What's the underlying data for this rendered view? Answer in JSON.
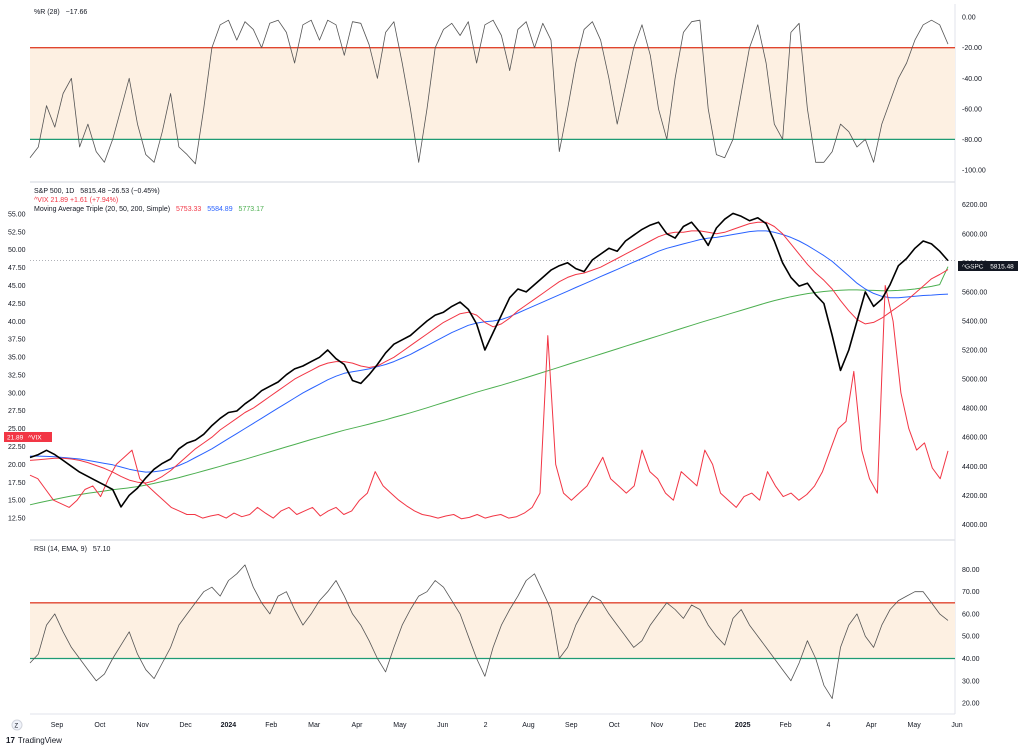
{
  "colors": {
    "price": "#000000",
    "vix": "#f23645",
    "ma20": "#f23645",
    "ma50": "#2962ff",
    "ma200": "#4caf50",
    "upper_band": "#e0452f",
    "lower_band": "#1e9b74",
    "band_fill": "#fdf0e2",
    "grid": "#f0f3fa"
  },
  "footer": {
    "brand_icon": "tradingview-logo-icon",
    "brand": "TradingView"
  },
  "chart_data": [
    {
      "id": "wr",
      "type": "line",
      "legend": {
        "name": "%R (28)",
        "value": "−17.66"
      },
      "y_ticks": [
        "0.00",
        "-20.00",
        "-40.00",
        "-60.00",
        "-80.00",
        "-100.00"
      ],
      "ylim": [
        -104,
        6
      ],
      "levels": [
        {
          "value": -20,
          "color": "#e0452f"
        },
        {
          "value": -80,
          "color": "#1e9b74"
        }
      ],
      "band": [
        -80,
        -20
      ],
      "series": [
        {
          "name": "%R",
          "color": "#555555",
          "values": [
            -92,
            -85,
            -58,
            -72,
            -50,
            -40,
            -85,
            -70,
            -88,
            -95,
            -80,
            -60,
            -40,
            -70,
            -90,
            -95,
            -75,
            -50,
            -85,
            -90,
            -96,
            -60,
            -20,
            -5,
            -2,
            -15,
            -3,
            -8,
            -20,
            -4,
            -2,
            -10,
            -30,
            -5,
            -2,
            -15,
            -2,
            -5,
            -25,
            -3,
            -4,
            -18,
            -40,
            -10,
            -3,
            -30,
            -60,
            -95,
            -60,
            -20,
            -8,
            -4,
            -12,
            -3,
            -30,
            -5,
            -2,
            -12,
            -35,
            -8,
            -3,
            -20,
            -4,
            -15,
            -88,
            -60,
            -30,
            -8,
            -3,
            -15,
            -40,
            -70,
            -45,
            -20,
            -5,
            -25,
            -60,
            -80,
            -40,
            -10,
            -3,
            -2,
            -60,
            -90,
            -92,
            -80,
            -50,
            -20,
            -5,
            -30,
            -70,
            -80,
            -10,
            -4,
            -60,
            -95,
            -95,
            -88,
            -70,
            -75,
            -85,
            -80,
            -95,
            -70,
            -55,
            -40,
            -30,
            -15,
            -5,
            -2,
            -5,
            -17.66
          ]
        }
      ]
    },
    {
      "id": "main",
      "type": "line",
      "legend": {
        "title": "S&P 500, 1D",
        "ohlc": "5815.48  −26.53 (−0.45%)",
        "vix": "^VIX  21.89  +1.61 (+7.94%)",
        "ma_name": "Moving Average Triple (20, 50, 200, Simple)",
        "ma20": "5753.33",
        "ma50": "5584.89",
        "ma200": "5773.17"
      },
      "left_axis_ticks": [
        "55.00",
        "52.50",
        "50.00",
        "47.50",
        "45.00",
        "42.50",
        "40.00",
        "37.50",
        "35.00",
        "32.50",
        "30.00",
        "27.50",
        "25.00",
        "22.50",
        "20.00",
        "17.50",
        "15.00",
        "12.50"
      ],
      "right_axis_ticks": [
        "6200.00",
        "6000.00",
        "5800.00",
        "5600.00",
        "5400.00",
        "5200.00",
        "5000.00",
        "4800.00",
        "4600.00",
        "4400.00",
        "4200.00",
        "4000.00"
      ],
      "left_ylim": [
        10,
        57.5
      ],
      "right_ylim": [
        3920,
        6260
      ],
      "right_label": {
        "name": "^GSPC",
        "value": "5815.48"
      },
      "left_label": {
        "value": "21.89",
        "name": "^VIX"
      },
      "series": [
        {
          "name": "S&P 500",
          "axis": "right",
          "color": "#000000",
          "values": [
            4460,
            4480,
            4510,
            4480,
            4440,
            4400,
            4360,
            4330,
            4300,
            4270,
            4240,
            4120,
            4200,
            4250,
            4320,
            4380,
            4420,
            4450,
            4520,
            4560,
            4580,
            4620,
            4680,
            4730,
            4770,
            4780,
            4830,
            4870,
            4920,
            4950,
            4980,
            5030,
            5070,
            5090,
            5120,
            5150,
            5200,
            5140,
            5100,
            4990,
            4970,
            5030,
            5100,
            5180,
            5240,
            5270,
            5300,
            5350,
            5400,
            5440,
            5460,
            5500,
            5530,
            5480,
            5380,
            5200,
            5320,
            5440,
            5560,
            5620,
            5600,
            5650,
            5700,
            5750,
            5780,
            5800,
            5760,
            5740,
            5820,
            5860,
            5900,
            5880,
            5950,
            5990,
            6030,
            6060,
            6080,
            6000,
            5970,
            6050,
            6080,
            6010,
            5920,
            6040,
            6100,
            6140,
            6120,
            6090,
            6110,
            6070,
            5950,
            5800,
            5700,
            5640,
            5660,
            5580,
            5520,
            5300,
            5060,
            5200,
            5400,
            5600,
            5500,
            5550,
            5650,
            5780,
            5830,
            5900,
            5950,
            5930,
            5880,
            5815.48
          ]
        },
        {
          "name": "MA 20",
          "axis": "right",
          "color": "#f23645",
          "values": [
            4440,
            4445,
            4450,
            4455,
            4455,
            4450,
            4440,
            4425,
            4405,
            4385,
            4360,
            4330,
            4305,
            4290,
            4285,
            4300,
            4330,
            4370,
            4420,
            4470,
            4520,
            4560,
            4600,
            4650,
            4690,
            4730,
            4770,
            4800,
            4840,
            4880,
            4920,
            4960,
            5000,
            5030,
            5060,
            5090,
            5110,
            5120,
            5120,
            5110,
            5090,
            5080,
            5090,
            5120,
            5150,
            5190,
            5230,
            5270,
            5310,
            5350,
            5390,
            5420,
            5450,
            5460,
            5440,
            5390,
            5360,
            5380,
            5420,
            5470,
            5510,
            5550,
            5590,
            5630,
            5670,
            5700,
            5720,
            5730,
            5750,
            5770,
            5800,
            5830,
            5860,
            5890,
            5920,
            5950,
            5980,
            6000,
            6010,
            6010,
            6020,
            6020,
            6010,
            6000,
            6010,
            6030,
            6050,
            6070,
            6080,
            6080,
            6050,
            6000,
            5930,
            5860,
            5790,
            5730,
            5680,
            5620,
            5540,
            5470,
            5410,
            5380,
            5390,
            5420,
            5460,
            5500,
            5540,
            5590,
            5640,
            5690,
            5720,
            5753.33
          ]
        },
        {
          "name": "MA 50",
          "axis": "right",
          "color": "#2962ff",
          "values": [
            4470,
            4470,
            4468,
            4465,
            4460,
            4455,
            4450,
            4440,
            4430,
            4420,
            4410,
            4395,
            4380,
            4368,
            4360,
            4362,
            4370,
            4385,
            4405,
            4430,
            4460,
            4490,
            4520,
            4555,
            4590,
            4625,
            4660,
            4695,
            4730,
            4765,
            4800,
            4835,
            4870,
            4905,
            4935,
            4965,
            4995,
            5020,
            5040,
            5050,
            5060,
            5070,
            5085,
            5100,
            5120,
            5145,
            5170,
            5200,
            5230,
            5260,
            5290,
            5320,
            5345,
            5370,
            5385,
            5395,
            5400,
            5410,
            5430,
            5455,
            5480,
            5505,
            5530,
            5555,
            5580,
            5605,
            5630,
            5655,
            5680,
            5705,
            5730,
            5755,
            5780,
            5805,
            5830,
            5855,
            5880,
            5900,
            5915,
            5930,
            5945,
            5960,
            5970,
            5975,
            5985,
            5995,
            6005,
            6015,
            6020,
            6020,
            6010,
            5995,
            5975,
            5950,
            5920,
            5885,
            5850,
            5810,
            5760,
            5710,
            5660,
            5620,
            5590,
            5570,
            5560,
            5560,
            5565,
            5570,
            5575,
            5578,
            5582,
            5584.89
          ]
        },
        {
          "name": "MA 200",
          "axis": "right",
          "color": "#4caf50",
          "values": [
            4135,
            4148,
            4160,
            4172,
            4184,
            4195,
            4205,
            4214,
            4222,
            4230,
            4238,
            4245,
            4252,
            4260,
            4270,
            4282,
            4295,
            4308,
            4322,
            4337,
            4352,
            4368,
            4384,
            4400,
            4416,
            4432,
            4448,
            4465,
            4482,
            4499,
            4516,
            4533,
            4550,
            4567,
            4584,
            4600,
            4616,
            4632,
            4648,
            4662,
            4676,
            4690,
            4705,
            4720,
            4736,
            4752,
            4768,
            4785,
            4802,
            4820,
            4838,
            4856,
            4874,
            4892,
            4910,
            4926,
            4942,
            4958,
            4975,
            4992,
            5010,
            5028,
            5046,
            5064,
            5082,
            5100,
            5118,
            5136,
            5154,
            5172,
            5190,
            5208,
            5226,
            5244,
            5262,
            5280,
            5298,
            5316,
            5334,
            5352,
            5370,
            5388,
            5405,
            5422,
            5439,
            5456,
            5473,
            5490,
            5507,
            5524,
            5540,
            5554,
            5567,
            5578,
            5588,
            5596,
            5603,
            5608,
            5612,
            5614,
            5614,
            5612,
            5610,
            5608,
            5608,
            5610,
            5614,
            5620,
            5628,
            5638,
            5650,
            5773.17
          ]
        },
        {
          "name": "^VIX",
          "axis": "left",
          "color": "#f23645",
          "values": [
            18.5,
            18,
            16.5,
            15,
            14.5,
            14,
            15,
            16.5,
            17,
            15.5,
            18,
            20,
            21,
            22,
            18,
            17,
            16,
            15,
            14,
            13.5,
            13,
            13,
            12.5,
            12.8,
            13,
            12.5,
            13.2,
            12.7,
            13,
            14,
            13.2,
            12.5,
            13.5,
            14,
            13,
            13.5,
            14,
            12.8,
            13.5,
            14,
            13,
            13.5,
            15,
            16,
            19,
            17,
            16,
            15,
            14.2,
            13.5,
            13,
            12.8,
            12.5,
            12.8,
            13,
            12.4,
            12.6,
            13,
            12.5,
            12.8,
            13,
            12.5,
            12.7,
            13.2,
            14,
            16,
            38,
            20,
            16,
            15,
            16,
            17,
            19,
            21,
            18,
            17,
            16,
            17,
            22,
            19,
            18,
            16,
            15,
            19,
            18,
            17,
            22,
            20,
            16,
            15,
            14,
            15.5,
            16,
            15,
            19,
            17,
            15.5,
            16,
            15,
            15.8,
            17,
            19,
            22,
            25,
            26,
            33,
            22,
            18,
            16,
            45,
            40,
            30,
            25,
            22,
            23,
            19.5,
            18,
            21.89
          ]
        }
      ]
    },
    {
      "id": "rsi",
      "type": "line",
      "legend": {
        "name": "RSI (14, EMA, 9)",
        "value": "57.10"
      },
      "y_ticks": [
        "80.00",
        "70.00",
        "60.00",
        "50.00",
        "40.00",
        "30.00",
        "20.00"
      ],
      "ylim": [
        16,
        86
      ],
      "levels": [
        {
          "value": 65,
          "color": "#e0452f"
        },
        {
          "value": 40,
          "color": "#1e9b74"
        }
      ],
      "band": [
        40,
        65
      ],
      "series": [
        {
          "name": "RSI",
          "color": "#555555",
          "values": [
            38,
            42,
            55,
            60,
            52,
            45,
            40,
            35,
            30,
            33,
            40,
            46,
            52,
            42,
            35,
            31,
            38,
            45,
            55,
            60,
            65,
            70,
            72,
            68,
            75,
            78,
            82,
            72,
            65,
            60,
            68,
            70,
            62,
            55,
            60,
            66,
            70,
            75,
            68,
            60,
            55,
            48,
            40,
            34,
            45,
            55,
            62,
            68,
            70,
            75,
            72,
            66,
            60,
            50,
            40,
            32,
            45,
            55,
            62,
            68,
            75,
            78,
            70,
            62,
            40,
            45,
            55,
            62,
            68,
            66,
            60,
            55,
            50,
            45,
            48,
            55,
            60,
            65,
            62,
            58,
            64,
            62,
            55,
            50,
            46,
            58,
            62,
            55,
            50,
            45,
            40,
            35,
            30,
            38,
            48,
            40,
            28,
            22,
            45,
            55,
            60,
            50,
            45,
            55,
            62,
            66,
            68,
            70,
            70,
            65,
            60,
            57.1
          ]
        }
      ]
    }
  ],
  "x_axis": {
    "labels": [
      {
        "text": "Sep",
        "bold": false
      },
      {
        "text": "Oct",
        "bold": false
      },
      {
        "text": "Nov",
        "bold": false
      },
      {
        "text": "Dec",
        "bold": false
      },
      {
        "text": "2024",
        "bold": true
      },
      {
        "text": "Feb",
        "bold": false
      },
      {
        "text": "Mar",
        "bold": false
      },
      {
        "text": "Apr",
        "bold": false
      },
      {
        "text": "May",
        "bold": false
      },
      {
        "text": "Jun",
        "bold": false
      },
      {
        "text": "2",
        "bold": false
      },
      {
        "text": "Aug",
        "bold": false
      },
      {
        "text": "Sep",
        "bold": false
      },
      {
        "text": "Oct",
        "bold": false
      },
      {
        "text": "Nov",
        "bold": false
      },
      {
        "text": "Dec",
        "bold": false
      },
      {
        "text": "2025",
        "bold": true
      },
      {
        "text": "Feb",
        "bold": false
      },
      {
        "text": "4",
        "bold": false
      },
      {
        "text": "Apr",
        "bold": false
      },
      {
        "text": "May",
        "bold": false
      },
      {
        "text": "Jun",
        "bold": false
      }
    ]
  }
}
